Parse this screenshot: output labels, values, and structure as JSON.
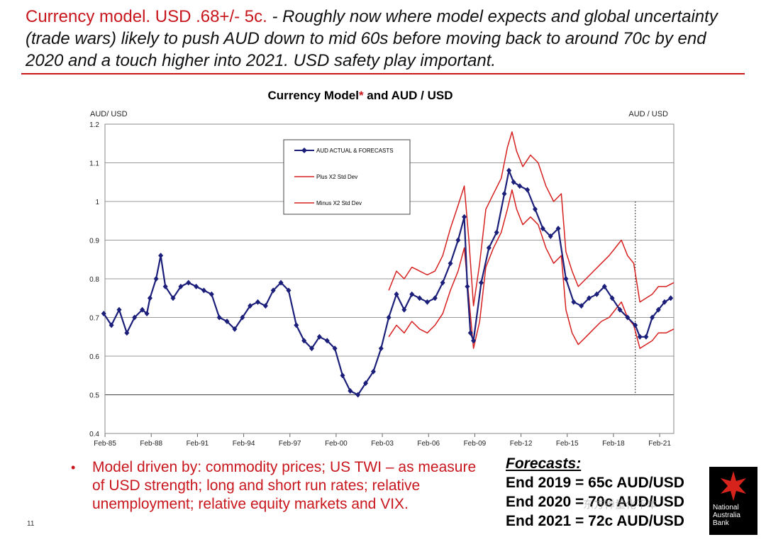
{
  "headline": {
    "red": "Currency model. USD .68+/- 5c.",
    "rest": " - Roughly now where model expects and global uncertainty (trade wars) likely to push AUD down to mid 60s before moving back to around 70c by end 2020 and a touch higher into 2021.  USD safety play important."
  },
  "chart_data": {
    "type": "line",
    "title": "Currency Model",
    "title_mark": "*",
    "title_rest": " and AUD / USD",
    "ylabel_left": "AUD/ USD",
    "ylabel_right": "AUD / USD",
    "ylim": [
      0.4,
      1.2
    ],
    "yticks": [
      "0.4",
      "0.5",
      "0.6",
      "0.7",
      "0.8",
      "0.9",
      "1",
      "1.1",
      "1.2"
    ],
    "xlim": [
      1985.08,
      2022.0
    ],
    "xticks": [
      "Feb-85",
      "Feb-88",
      "Feb-91",
      "Feb-94",
      "Feb-97",
      "Feb-00",
      "Feb-03",
      "Feb-06",
      "Feb-09",
      "Feb-12",
      "Feb-15",
      "Feb-18",
      "Feb-21"
    ],
    "grid": true,
    "forecast_divider_year": 2019.5,
    "legend_position": "top-left",
    "colors": {
      "actual": "#1b1f7a",
      "band": "#d62020"
    },
    "series": [
      {
        "name": "AUD  ACTUAL & FORECASTS",
        "style": "line-diamond",
        "x": [
          1985.0,
          1985.5,
          1986.0,
          1986.5,
          1987.0,
          1987.5,
          1987.8,
          1988.0,
          1988.4,
          1988.7,
          1989.0,
          1989.5,
          1990.0,
          1990.5,
          1991.0,
          1991.5,
          1992.0,
          1992.5,
          1993.0,
          1993.5,
          1994.0,
          1994.5,
          1995.0,
          1995.5,
          1996.0,
          1996.5,
          1997.0,
          1997.5,
          1998.0,
          1998.5,
          1999.0,
          1999.5,
          2000.0,
          2000.5,
          2001.0,
          2001.5,
          2002.0,
          2002.5,
          2003.0,
          2003.5,
          2004.0,
          2004.5,
          2005.0,
          2005.5,
          2006.0,
          2006.5,
          2007.0,
          2007.5,
          2008.0,
          2008.4,
          2008.6,
          2008.8,
          2009.0,
          2009.5,
          2010.0,
          2010.5,
          2011.0,
          2011.3,
          2011.6,
          2012.0,
          2012.5,
          2013.0,
          2013.5,
          2014.0,
          2014.5,
          2015.0,
          2015.5,
          2016.0,
          2016.5,
          2017.0,
          2017.5,
          2018.0,
          2018.5,
          2019.0,
          2019.5,
          2019.8,
          2020.2,
          2020.6,
          2021.0,
          2021.4,
          2021.8
        ],
        "y": [
          0.71,
          0.68,
          0.72,
          0.66,
          0.7,
          0.72,
          0.71,
          0.75,
          0.8,
          0.86,
          0.78,
          0.75,
          0.78,
          0.79,
          0.78,
          0.77,
          0.76,
          0.7,
          0.69,
          0.67,
          0.7,
          0.73,
          0.74,
          0.73,
          0.77,
          0.79,
          0.77,
          0.68,
          0.64,
          0.62,
          0.65,
          0.64,
          0.62,
          0.55,
          0.51,
          0.5,
          0.53,
          0.56,
          0.62,
          0.7,
          0.76,
          0.72,
          0.76,
          0.75,
          0.74,
          0.75,
          0.79,
          0.84,
          0.9,
          0.96,
          0.78,
          0.66,
          0.64,
          0.79,
          0.88,
          0.92,
          1.02,
          1.08,
          1.05,
          1.04,
          1.03,
          0.98,
          0.93,
          0.91,
          0.93,
          0.8,
          0.74,
          0.73,
          0.75,
          0.76,
          0.78,
          0.75,
          0.72,
          0.7,
          0.68,
          0.65,
          0.65,
          0.7,
          0.72,
          0.74,
          0.75
        ]
      },
      {
        "name": "Plus X2 Std Dev",
        "style": "line",
        "x": [
          2003.5,
          2004.0,
          2004.5,
          2005.0,
          2005.5,
          2006.0,
          2006.5,
          2007.0,
          2007.5,
          2008.0,
          2008.4,
          2008.7,
          2009.0,
          2009.4,
          2009.8,
          2010.3,
          2010.8,
          2011.2,
          2011.5,
          2011.8,
          2012.2,
          2012.7,
          2013.2,
          2013.7,
          2014.2,
          2014.7,
          2015.0,
          2015.4,
          2015.8,
          2016.3,
          2016.8,
          2017.3,
          2017.8,
          2018.2,
          2018.6,
          2019.0,
          2019.4,
          2019.8,
          2020.2,
          2020.6,
          2021.0,
          2021.5,
          2022.0
        ],
        "y": [
          0.77,
          0.82,
          0.8,
          0.83,
          0.82,
          0.81,
          0.82,
          0.86,
          0.93,
          0.99,
          1.04,
          0.9,
          0.73,
          0.84,
          0.98,
          1.02,
          1.06,
          1.14,
          1.18,
          1.13,
          1.09,
          1.12,
          1.1,
          1.04,
          1.0,
          1.02,
          0.87,
          0.82,
          0.78,
          0.8,
          0.82,
          0.84,
          0.86,
          0.88,
          0.9,
          0.86,
          0.84,
          0.74,
          0.75,
          0.76,
          0.78,
          0.78,
          0.79
        ]
      },
      {
        "name": "Minus X2 Std Dev",
        "style": "line",
        "x": [
          2003.5,
          2004.0,
          2004.5,
          2005.0,
          2005.5,
          2006.0,
          2006.5,
          2007.0,
          2007.5,
          2008.0,
          2008.4,
          2008.7,
          2009.0,
          2009.4,
          2009.8,
          2010.3,
          2010.8,
          2011.2,
          2011.5,
          2011.8,
          2012.2,
          2012.7,
          2013.2,
          2013.7,
          2014.2,
          2014.7,
          2015.0,
          2015.4,
          2015.8,
          2016.3,
          2016.8,
          2017.3,
          2017.8,
          2018.2,
          2018.6,
          2019.0,
          2019.4,
          2019.8,
          2020.2,
          2020.6,
          2021.0,
          2021.5,
          2022.0
        ],
        "y": [
          0.65,
          0.68,
          0.66,
          0.69,
          0.67,
          0.66,
          0.68,
          0.71,
          0.77,
          0.82,
          0.88,
          0.75,
          0.62,
          0.69,
          0.83,
          0.88,
          0.92,
          0.98,
          1.03,
          0.98,
          0.94,
          0.96,
          0.94,
          0.88,
          0.84,
          0.86,
          0.72,
          0.66,
          0.63,
          0.65,
          0.67,
          0.69,
          0.7,
          0.72,
          0.74,
          0.7,
          0.68,
          0.62,
          0.63,
          0.64,
          0.66,
          0.66,
          0.67
        ]
      }
    ]
  },
  "bullet": {
    "symbol": "•",
    "text": "Model driven by: commodity prices; US TWI – as measure of USD strength; long and short run rates; relative unemployment; relative equity markets and VIX."
  },
  "forecasts": {
    "heading": "Forecasts:",
    "lines": [
      "End 2019 = 65c AUD/USD",
      "End 2020 = 70c AUD/USD",
      "End 2021 = 72c AUD/USD"
    ]
  },
  "slide_number": "11",
  "logo": {
    "line1": "National",
    "line2": "Australia",
    "line3": "Bank"
  },
  "watermark": "东方禅量化不本"
}
